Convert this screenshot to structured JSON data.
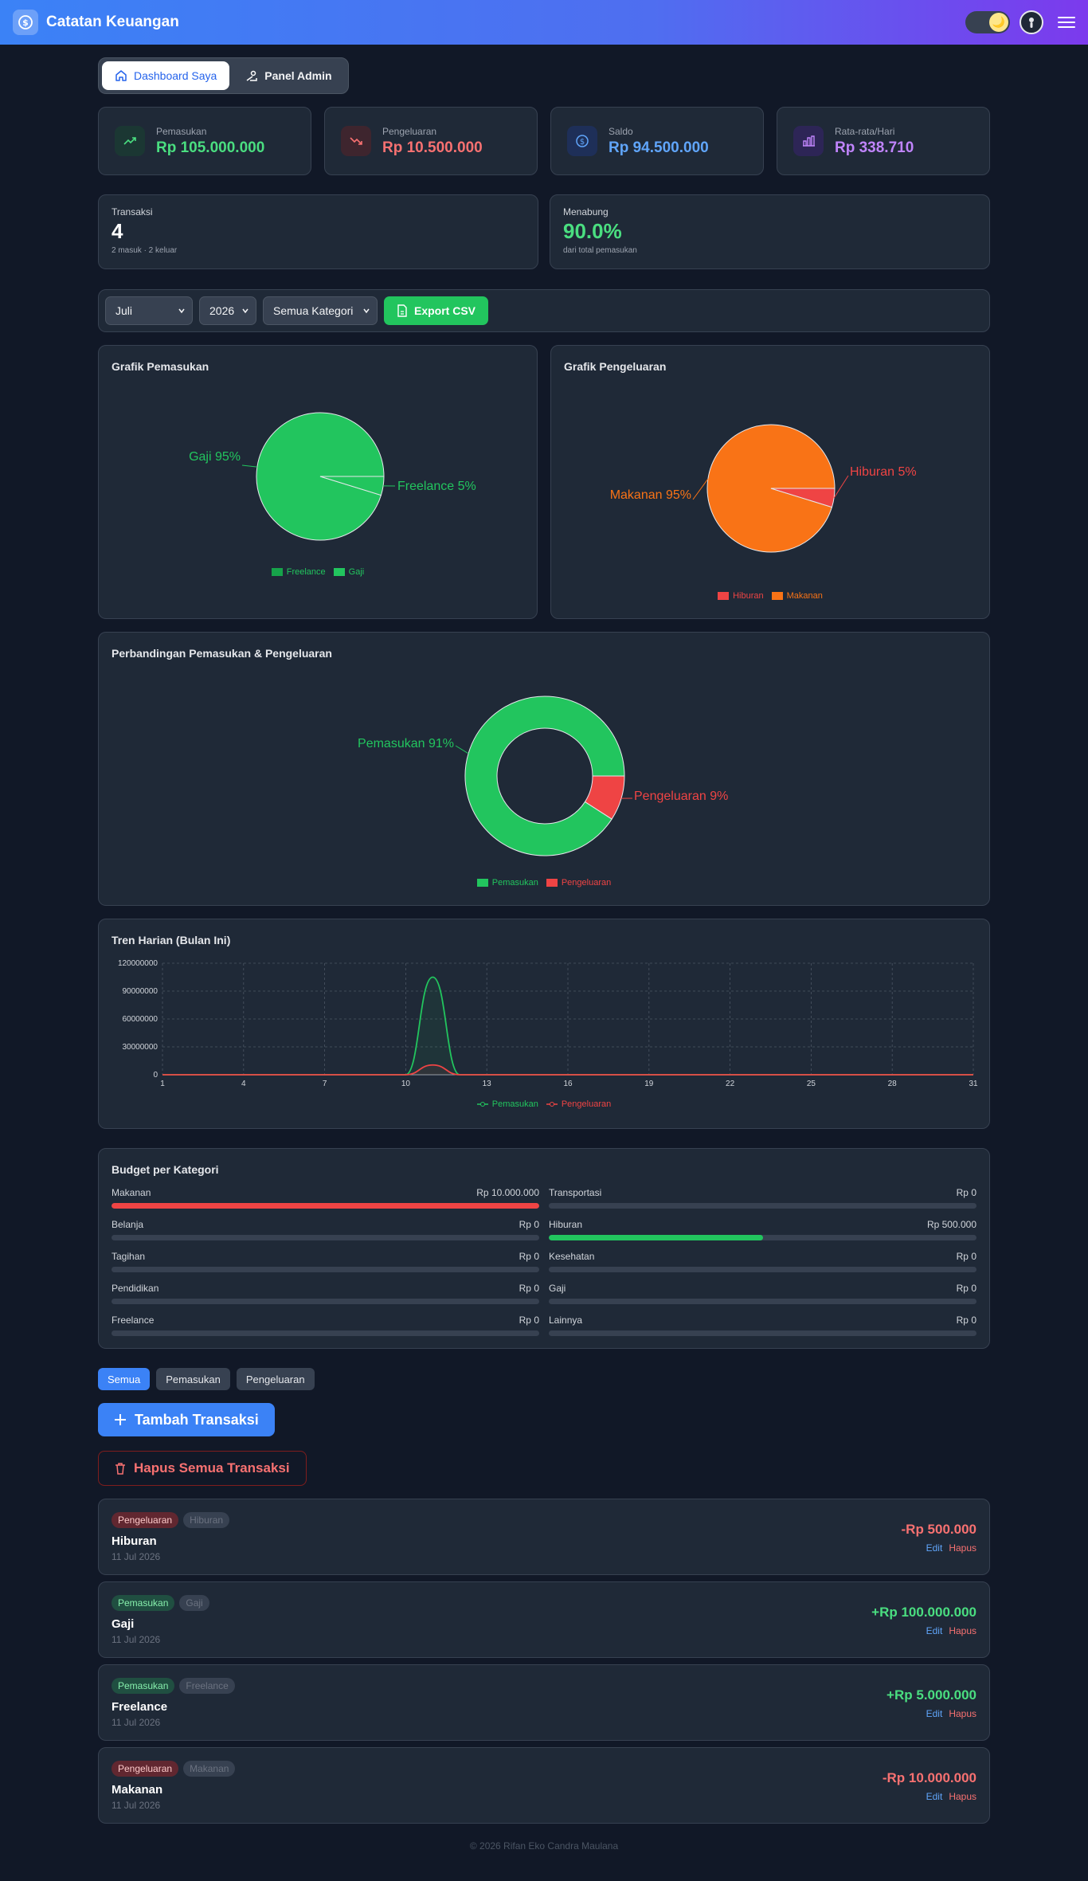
{
  "header": {
    "title": "Catatan Keuangan",
    "logo_icon": "dollar-coin-icon",
    "theme_icon": "moon-icon",
    "avatar_icon": "user-avatar-icon",
    "menu_icon": "hamburger-menu-icon"
  },
  "tabs": [
    {
      "label": "Dashboard Saya",
      "icon": "home-icon",
      "active": true
    },
    {
      "label": "Panel Admin",
      "icon": "admin-icon",
      "active": false
    }
  ],
  "stats": [
    {
      "label": "Pemasukan",
      "value": "Rp 105.000.000",
      "color": "#4ade80",
      "icon": "trending-up-icon"
    },
    {
      "label": "Pengeluaran",
      "value": "Rp 10.500.000",
      "color": "#f87171",
      "icon": "trending-down-icon"
    },
    {
      "label": "Saldo",
      "value": "Rp 94.500.000",
      "color": "#60a5fa",
      "icon": "dollar-circle-icon"
    },
    {
      "label": "Rata-rata/Hari",
      "value": "Rp 338.710",
      "color": "#c084fc",
      "icon": "bar-chart-icon"
    }
  ],
  "summary": {
    "transactions": {
      "label": "Transaksi",
      "value": "4",
      "sub": "2 masuk · 2 keluar"
    },
    "saving": {
      "label": "Menabung",
      "value": "90.0%",
      "sub": "dari total pemasukan"
    }
  },
  "filters": {
    "month": "Juli",
    "year": "2026",
    "category": "Semua Kategori",
    "export_label": "Export CSV"
  },
  "charts": {
    "income_title": "Grafik Pemasukan",
    "expense_title": "Grafik Pengeluaran",
    "compare_title": "Perbandingan Pemasukan & Pengeluaran",
    "trend_title": "Tren Harian (Bulan Ini)"
  },
  "chart_data": [
    {
      "type": "pie",
      "title": "Grafik Pemasukan",
      "legend": [
        "Freelance",
        "Gaji"
      ],
      "slices": [
        {
          "name": "Gaji",
          "value": 100000000,
          "label": "Gaji 95%",
          "color": "#22c55e"
        },
        {
          "name": "Freelance",
          "value": 5000000,
          "label": "Freelance 5%",
          "color": "#22c55e"
        }
      ]
    },
    {
      "type": "pie",
      "title": "Grafik Pengeluaran",
      "legend": [
        "Hiburan",
        "Makanan"
      ],
      "slices": [
        {
          "name": "Makanan",
          "value": 10000000,
          "label": "Makanan 95%",
          "color": "#f97316"
        },
        {
          "name": "Hiburan",
          "value": 500000,
          "label": "Hiburan 5%",
          "color": "#ef4444"
        }
      ]
    },
    {
      "type": "pie",
      "title": "Perbandingan Pemasukan & Pengeluaran",
      "donut": true,
      "legend": [
        "Pemasukan",
        "Pengeluaran"
      ],
      "slices": [
        {
          "name": "Pemasukan",
          "value": 105000000,
          "label": "Pemasukan 91%",
          "color": "#22c55e"
        },
        {
          "name": "Pengeluaran",
          "value": 10500000,
          "label": "Pengeluaran 9%",
          "color": "#ef4444"
        }
      ]
    },
    {
      "type": "line",
      "title": "Tren Harian (Bulan Ini)",
      "x": [
        1,
        2,
        3,
        4,
        5,
        6,
        7,
        8,
        9,
        10,
        11,
        12,
        13,
        14,
        15,
        16,
        17,
        18,
        19,
        20,
        21,
        22,
        23,
        24,
        25,
        26,
        27,
        28,
        29,
        30,
        31
      ],
      "xticks": [
        "1",
        "4",
        "7",
        "10",
        "13",
        "16",
        "19",
        "22",
        "25",
        "28",
        "31"
      ],
      "yticks": [
        "0",
        "30000000",
        "60000000",
        "90000000",
        "120000000"
      ],
      "ylim": [
        0,
        120000000
      ],
      "grid": true,
      "legend_position": "bottom",
      "series": [
        {
          "name": "Pemasukan",
          "color": "#22c55e",
          "values": [
            0,
            0,
            0,
            0,
            0,
            0,
            0,
            0,
            0,
            0,
            105000000,
            0,
            0,
            0,
            0,
            0,
            0,
            0,
            0,
            0,
            0,
            0,
            0,
            0,
            0,
            0,
            0,
            0,
            0,
            0,
            0
          ]
        },
        {
          "name": "Pengeluaran",
          "color": "#ef4444",
          "values": [
            0,
            0,
            0,
            0,
            0,
            0,
            0,
            0,
            0,
            0,
            10500000,
            0,
            0,
            0,
            0,
            0,
            0,
            0,
            0,
            0,
            0,
            0,
            0,
            0,
            0,
            0,
            0,
            0,
            0,
            0,
            0
          ]
        }
      ]
    }
  ],
  "budget": {
    "title": "Budget per Kategori",
    "items": [
      {
        "name": "Makanan",
        "amount": "Rp 10.000.000",
        "fill": 1.0,
        "color": "#ef4444"
      },
      {
        "name": "Transportasi",
        "amount": "Rp 0",
        "fill": 0,
        "color": "#22c55e"
      },
      {
        "name": "Belanja",
        "amount": "Rp 0",
        "fill": 0,
        "color": "#22c55e"
      },
      {
        "name": "Hiburan",
        "amount": "Rp 500.000",
        "fill": 0.5,
        "color": "#22c55e"
      },
      {
        "name": "Tagihan",
        "amount": "Rp 0",
        "fill": 0,
        "color": "#22c55e"
      },
      {
        "name": "Kesehatan",
        "amount": "Rp 0",
        "fill": 0,
        "color": "#22c55e"
      },
      {
        "name": "Pendidikan",
        "amount": "Rp 0",
        "fill": 0,
        "color": "#22c55e"
      },
      {
        "name": "Gaji",
        "amount": "Rp 0",
        "fill": 0,
        "color": "#22c55e"
      },
      {
        "name": "Freelance",
        "amount": "Rp 0",
        "fill": 0,
        "color": "#22c55e"
      },
      {
        "name": "Lainnya",
        "amount": "Rp 0",
        "fill": 0,
        "color": "#22c55e"
      }
    ]
  },
  "list_filters": [
    {
      "label": "Semua",
      "active": true
    },
    {
      "label": "Pemasukan",
      "active": false
    },
    {
      "label": "Pengeluaran",
      "active": false
    }
  ],
  "actions": {
    "add_label": "Tambah Transaksi",
    "delete_all_label": "Hapus Semua Transaksi"
  },
  "transactions": [
    {
      "type": "Pengeluaran",
      "kind": "out",
      "category": "Hiburan",
      "name": "Hiburan",
      "date": "11 Jul 2026",
      "amount": "-Rp 500.000",
      "edit": "Edit",
      "delete": "Hapus"
    },
    {
      "type": "Pemasukan",
      "kind": "in",
      "category": "Gaji",
      "name": "Gaji",
      "date": "11 Jul 2026",
      "amount": "+Rp 100.000.000",
      "edit": "Edit",
      "delete": "Hapus"
    },
    {
      "type": "Pemasukan",
      "kind": "in",
      "category": "Freelance",
      "name": "Freelance",
      "date": "11 Jul 2026",
      "amount": "+Rp 5.000.000",
      "edit": "Edit",
      "delete": "Hapus"
    },
    {
      "type": "Pengeluaran",
      "kind": "out",
      "category": "Makanan",
      "name": "Makanan",
      "date": "11 Jul 2026",
      "amount": "-Rp 10.000.000",
      "edit": "Edit",
      "delete": "Hapus"
    }
  ],
  "footer": "© 2026 Rifan Eko Candra Maulana"
}
